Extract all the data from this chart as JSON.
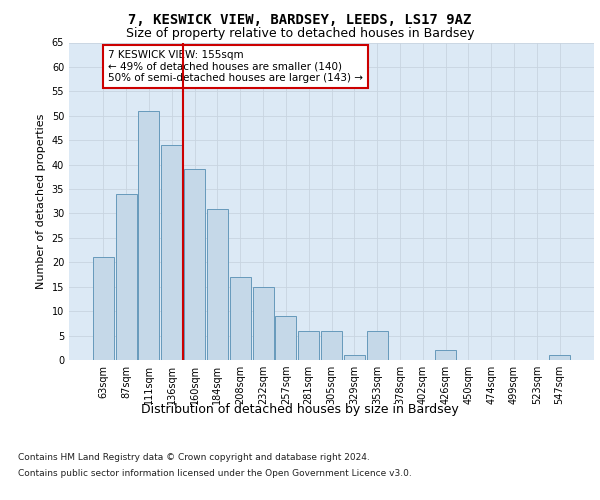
{
  "title1": "7, KESWICK VIEW, BARDSEY, LEEDS, LS17 9AZ",
  "title2": "Size of property relative to detached houses in Bardsey",
  "xlabel": "Distribution of detached houses by size in Bardsey",
  "ylabel": "Number of detached properties",
  "categories": [
    "63sqm",
    "87sqm",
    "111sqm",
    "136sqm",
    "160sqm",
    "184sqm",
    "208sqm",
    "232sqm",
    "257sqm",
    "281sqm",
    "305sqm",
    "329sqm",
    "353sqm",
    "378sqm",
    "402sqm",
    "426sqm",
    "450sqm",
    "474sqm",
    "499sqm",
    "523sqm",
    "547sqm"
  ],
  "values": [
    21,
    34,
    51,
    44,
    39,
    31,
    17,
    15,
    9,
    6,
    6,
    1,
    6,
    0,
    0,
    2,
    0,
    0,
    0,
    0,
    1
  ],
  "bar_color": "#c5d8e8",
  "bar_edge_color": "#6699bb",
  "vline_x_index": 4,
  "vline_color": "#cc0000",
  "ylim": [
    0,
    65
  ],
  "yticks": [
    0,
    5,
    10,
    15,
    20,
    25,
    30,
    35,
    40,
    45,
    50,
    55,
    60,
    65
  ],
  "annotation_text": "7 KESWICK VIEW: 155sqm\n← 49% of detached houses are smaller (140)\n50% of semi-detached houses are larger (143) →",
  "annotation_box_color": "#ffffff",
  "annotation_box_edge": "#cc0000",
  "grid_color": "#c8d4e0",
  "background_color": "#dce9f5",
  "footnote1": "Contains HM Land Registry data © Crown copyright and database right 2024.",
  "footnote2": "Contains public sector information licensed under the Open Government Licence v3.0.",
  "title1_fontsize": 10,
  "title2_fontsize": 9,
  "xlabel_fontsize": 9,
  "ylabel_fontsize": 8,
  "tick_fontsize": 7,
  "annotation_fontsize": 7.5,
  "footnote_fontsize": 6.5
}
